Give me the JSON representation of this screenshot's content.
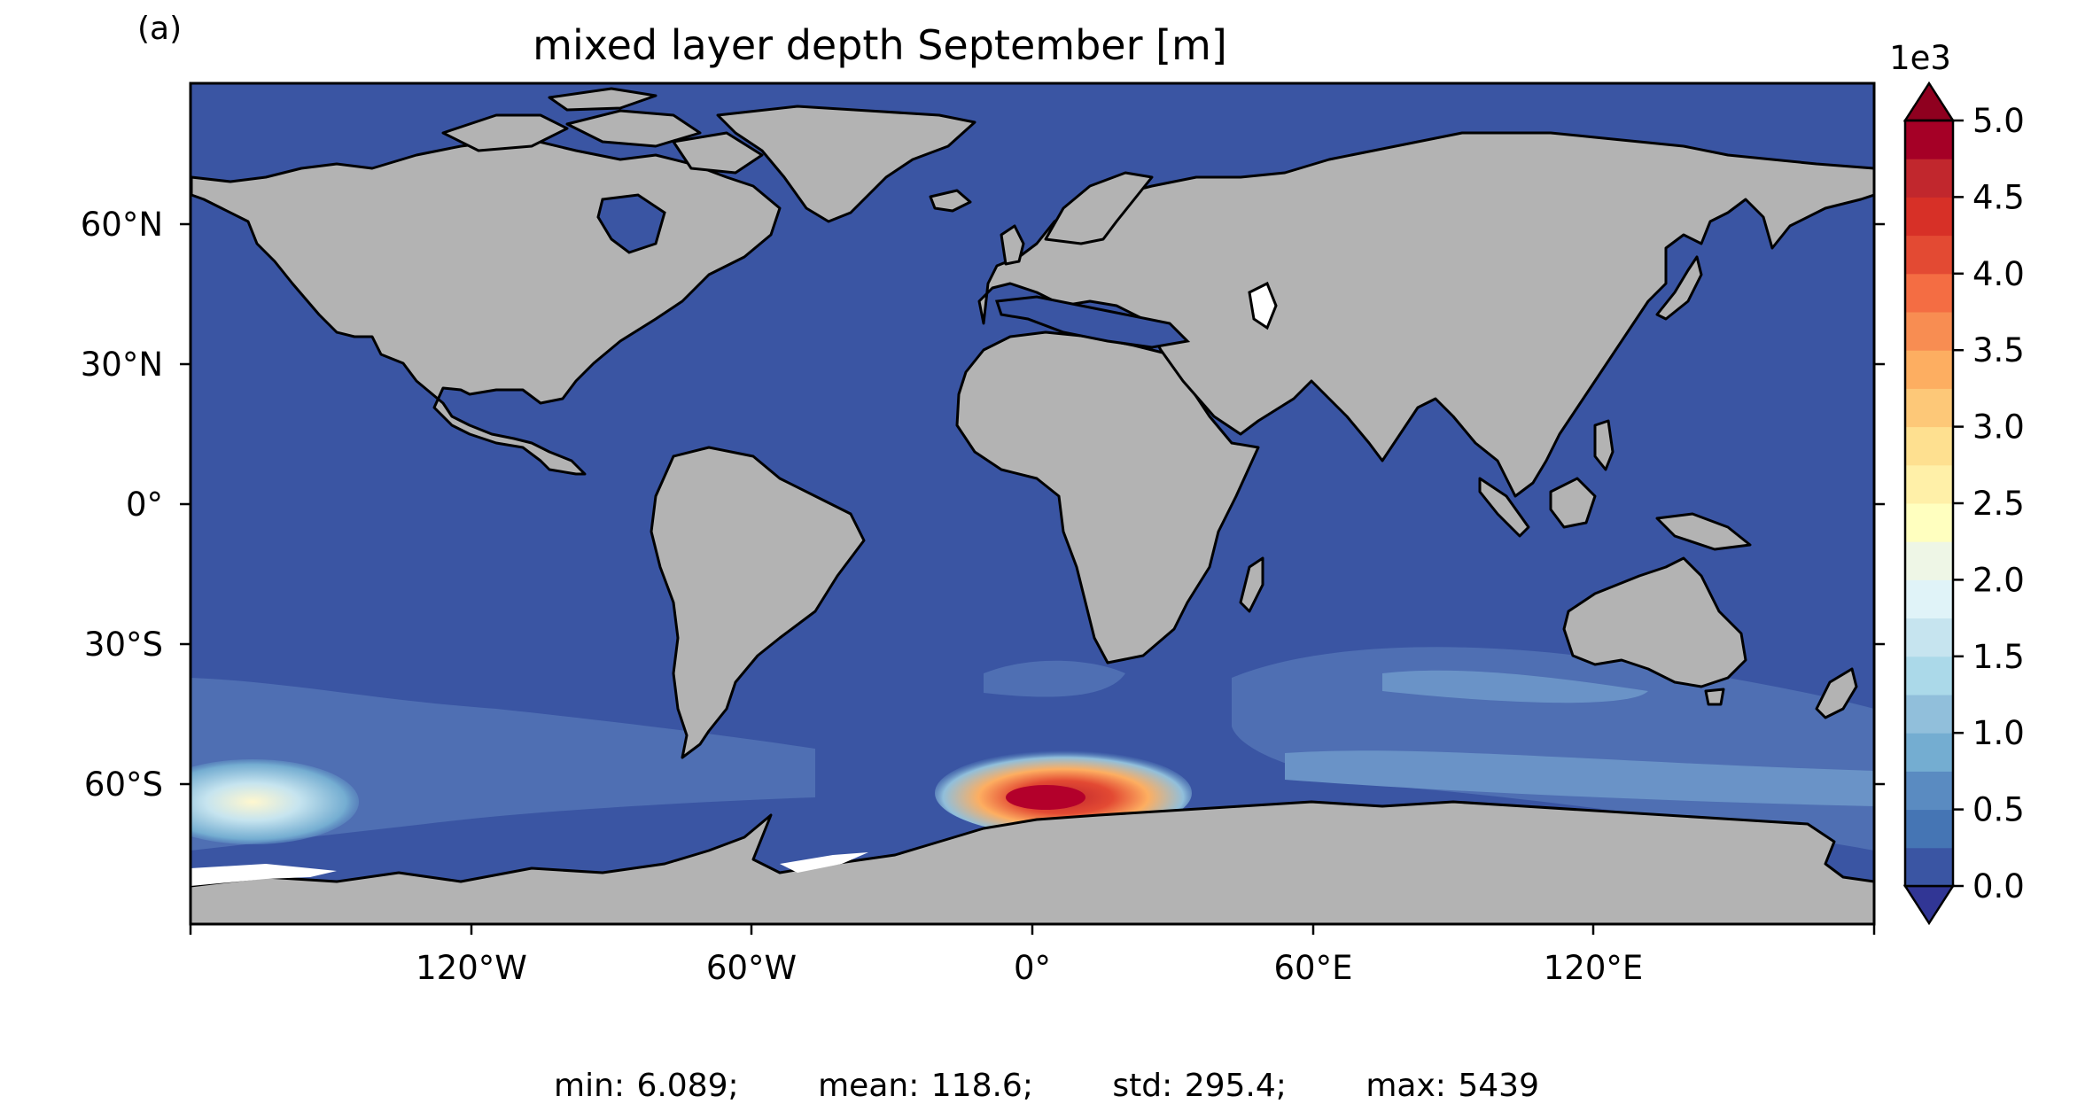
{
  "panel_label": "(a)",
  "title": "mixed layer depth September [m]",
  "colorbar": {
    "exponent_label": "1e3",
    "ticks": [
      "0.0",
      "0.5",
      "1.0",
      "1.5",
      "2.0",
      "2.5",
      "3.0",
      "3.5",
      "4.0",
      "4.5",
      "5.0"
    ],
    "colors": [
      "#313695",
      "#3a55a3",
      "#4575b4",
      "#5a8bc1",
      "#74add1",
      "#91bfdb",
      "#abd9e9",
      "#c6e4ef",
      "#e0f3f8",
      "#eef6e6",
      "#ffffbf",
      "#fff0a8",
      "#fee090",
      "#fdc878",
      "#fdae61",
      "#f88d52",
      "#f46d43",
      "#e34a33",
      "#d73027",
      "#c1272d",
      "#a50026",
      "#8f001f"
    ]
  },
  "axes": {
    "lat_ticks": [
      "60°N",
      "30°N",
      "0°",
      "30°S",
      "60°S"
    ],
    "lon_ticks": [
      "120°W",
      "60°W",
      "0°",
      "60°E",
      "120°E"
    ]
  },
  "stats": {
    "min": "min: 6.089;",
    "mean": "mean: 118.6;",
    "std": "std: 295.4;",
    "max": "max: 5439"
  },
  "colors": {
    "ocean": "#3a55a3",
    "land": "#b3b3b3",
    "coast": "#000000"
  }
}
